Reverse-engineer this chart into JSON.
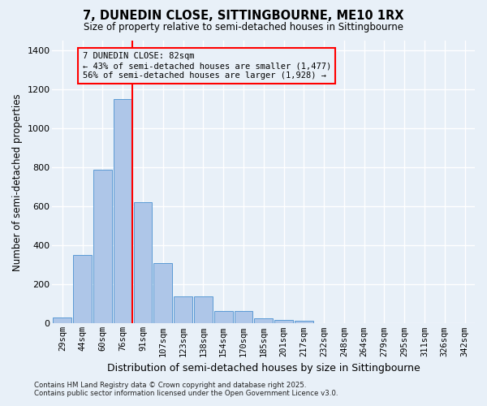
{
  "title_line1": "7, DUNEDIN CLOSE, SITTINGBOURNE, ME10 1RX",
  "title_line2": "Size of property relative to semi-detached houses in Sittingbourne",
  "xlabel": "Distribution of semi-detached houses by size in Sittingbourne",
  "ylabel": "Number of semi-detached properties",
  "categories": [
    "29sqm",
    "44sqm",
    "60sqm",
    "76sqm",
    "91sqm",
    "107sqm",
    "123sqm",
    "138sqm",
    "154sqm",
    "170sqm",
    "185sqm",
    "201sqm",
    "217sqm",
    "232sqm",
    "248sqm",
    "264sqm",
    "279sqm",
    "295sqm",
    "311sqm",
    "326sqm",
    "342sqm"
  ],
  "values": [
    30,
    350,
    790,
    1150,
    620,
    310,
    140,
    140,
    65,
    65,
    25,
    20,
    15,
    0,
    0,
    0,
    0,
    0,
    0,
    0,
    0
  ],
  "bar_color": "#aec6e8",
  "bar_edge_color": "#5b9bd5",
  "background_color": "#e8f0f8",
  "grid_color": "#ffffff",
  "red_line_index": 3,
  "annotation_title": "7 DUNEDIN CLOSE: 82sqm",
  "annotation_line2": "← 43% of semi-detached houses are smaller (1,477)",
  "annotation_line3": "56% of semi-detached houses are larger (1,928) →",
  "footer_line1": "Contains HM Land Registry data © Crown copyright and database right 2025.",
  "footer_line2": "Contains public sector information licensed under the Open Government Licence v3.0.",
  "ylim": [
    0,
    1450
  ],
  "yticks": [
    0,
    200,
    400,
    600,
    800,
    1000,
    1200,
    1400
  ]
}
